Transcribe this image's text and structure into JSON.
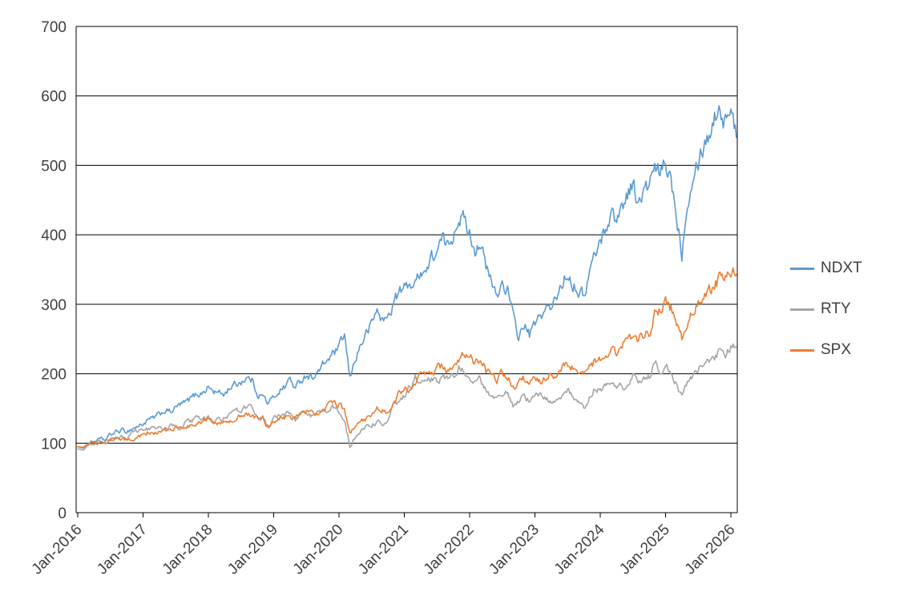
{
  "chart_data": {
    "type": "line",
    "title": "",
    "xlabel": "",
    "ylabel": "",
    "ylim": [
      0,
      700
    ],
    "y_tick_step": 100,
    "y_tick_labels": [
      "0",
      "100",
      "200",
      "300",
      "400",
      "500",
      "600",
      "700"
    ],
    "x_tick_labels": [
      "Jan-2016",
      "Jan-2017",
      "Jan-2018",
      "Jan-2019",
      "Jan-2020",
      "Jan-2021",
      "Jan-2022",
      "Jan-2023",
      "Jan-2024",
      "Jan-2025",
      "Jan-2026"
    ],
    "grid": "horizontal",
    "legend_position": "right",
    "background": "#ffffff",
    "gridline_color": "#000000",
    "axis_text_color": "#404040",
    "x_resolution": "monthly, Jan-2016 through Feb-2026, values indexed to ~100 at start",
    "series": [
      {
        "name": "NDXT",
        "color": "#5B9BD5",
        "monthly_values": [
          95,
          93,
          100,
          103,
          105,
          104,
          112,
          116,
          118,
          117,
          121,
          124,
          128,
          133,
          136,
          141,
          147,
          145,
          151,
          156,
          159,
          166,
          171,
          173,
          181,
          174,
          172,
          171,
          181,
          184,
          189,
          194,
          191,
          172,
          168,
          157,
          166,
          176,
          181,
          193,
          178,
          191,
          199,
          196,
          201,
          211,
          221,
          229,
          236,
          256,
          192,
          222,
          242,
          257,
          272,
          292,
          276,
          281,
          302,
          317,
          322,
          332,
          327,
          352,
          347,
          366,
          376,
          392,
          381,
          402,
          431,
          421,
          401,
          381,
          391,
          351,
          331,
          311,
          331,
          321,
          281,
          251,
          271,
          256,
          271,
          281,
          296,
          291,
          311,
          331,
          346,
          331,
          321,
          311,
          346,
          371,
          391,
          411,
          431,
          421,
          441,
          461,
          476,
          441,
          461,
          471,
          491,
          486,
          501,
          481,
          431,
          376,
          451,
          491,
          511,
          531,
          546,
          571,
          586,
          561,
          591,
          540
        ]
      },
      {
        "name": "RTY",
        "color": "#A5A5A5",
        "monthly_values": [
          92,
          90,
          98,
          100,
          101,
          100,
          105,
          107,
          108,
          104,
          115,
          118,
          119,
          121,
          121,
          122,
          121,
          124,
          125,
          123,
          130,
          132,
          134,
          133,
          137,
          132,
          134,
          135,
          142,
          145,
          147,
          152,
          150,
          135,
          137,
          122,
          135,
          142,
          140,
          144,
          134,
          143,
          144,
          138,
          141,
          144,
          148,
          152,
          147,
          135,
          95,
          110,
          118,
          122,
          125,
          132,
          128,
          130,
          155,
          165,
          170,
          180,
          195,
          193,
          192,
          195,
          190,
          195,
          190,
          196,
          210,
          200,
          195,
          190,
          192,
          175,
          172,
          162,
          170,
          172,
          155,
          160,
          168,
          160,
          172,
          170,
          162,
          160,
          158,
          168,
          175,
          168,
          162,
          152,
          165,
          180,
          175,
          180,
          185,
          178,
          182,
          180,
          195,
          190,
          195,
          198,
          215,
          205,
          210,
          200,
          185,
          168,
          185,
          195,
          205,
          215,
          220,
          225,
          235,
          230,
          240,
          238
        ]
      },
      {
        "name": "SPX",
        "color": "#ED7D31",
        "monthly_values": [
          95,
          94,
          100,
          101,
          102,
          102,
          106,
          106,
          106,
          104,
          108,
          110,
          112,
          116,
          116,
          117,
          118,
          119,
          121,
          121,
          123,
          126,
          129,
          131,
          138,
          133,
          130,
          130,
          133,
          134,
          138,
          143,
          143,
          134,
          136,
          122,
          132,
          136,
          138,
          143,
          134,
          143,
          145,
          142,
          145,
          148,
          153,
          157,
          157,
          145,
          112,
          128,
          134,
          136,
          143,
          153,
          147,
          143,
          162,
          170,
          176,
          180,
          188,
          196,
          198,
          202,
          207,
          213,
          205,
          217,
          219,
          230,
          226,
          215,
          222,
          205,
          203,
          188,
          200,
          196,
          180,
          185,
          193,
          186,
          196,
          190,
          196,
          198,
          198,
          207,
          214,
          210,
          200,
          195,
          210,
          218,
          222,
          230,
          238,
          228,
          240,
          248,
          252,
          250,
          258,
          262,
          285,
          295,
          300,
          295,
          270,
          252,
          278,
          292,
          302,
          312,
          320,
          328,
          336,
          340,
          342,
          343
        ]
      }
    ]
  }
}
